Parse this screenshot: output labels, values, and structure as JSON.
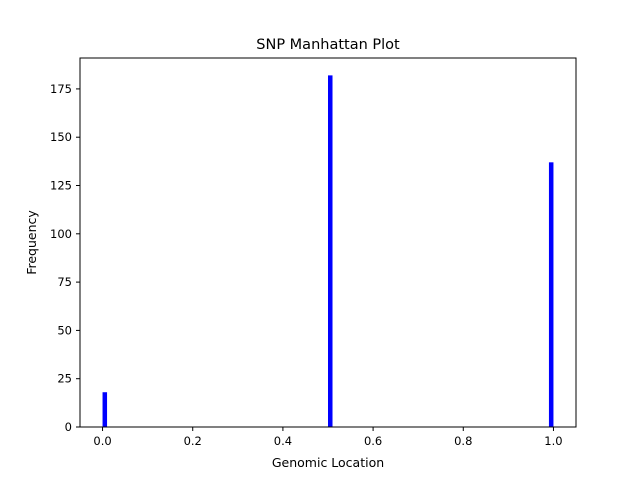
{
  "chart_data": {
    "type": "bar",
    "title": "SNP Manhattan Plot",
    "xlabel": "Genomic Location",
    "ylabel": "Frequency",
    "xlim": [
      -0.05,
      1.05
    ],
    "ylim": [
      0,
      191
    ],
    "x_ticks": [
      0.0,
      0.2,
      0.4,
      0.6,
      0.8,
      1.0
    ],
    "x_tick_labels": [
      "0.0",
      "0.2",
      "0.4",
      "0.6",
      "0.8",
      "1.0"
    ],
    "y_ticks": [
      0,
      25,
      50,
      75,
      100,
      125,
      150,
      175
    ],
    "y_tick_labels": [
      "0",
      "25",
      "50",
      "75",
      "100",
      "125",
      "150",
      "175"
    ],
    "bar_color": "#0000ff",
    "bar_width": 0.01,
    "bars": [
      {
        "x": 0.005,
        "value": 18
      },
      {
        "x": 0.505,
        "value": 182
      },
      {
        "x": 0.995,
        "value": 137
      }
    ],
    "grid": false,
    "legend": "none"
  }
}
